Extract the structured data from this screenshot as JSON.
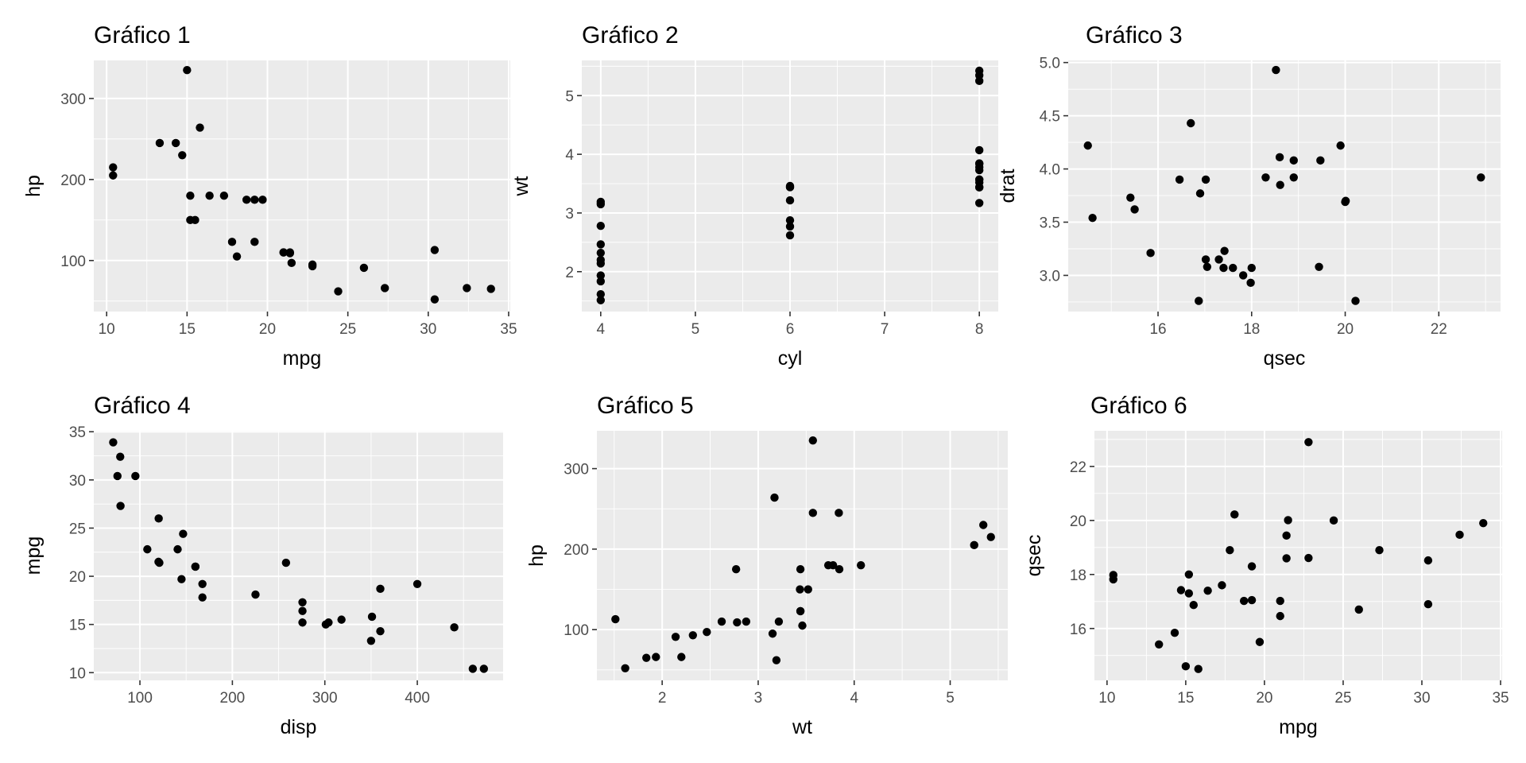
{
  "chart_data": [
    {
      "type": "scatter",
      "title": "Gráfico 1",
      "xlabel": "mpg",
      "ylabel": "hp",
      "xlim": [
        9.2,
        35.1
      ],
      "ylim": [
        37,
        347
      ],
      "x_ticks": [
        10,
        15,
        20,
        25,
        30,
        35
      ],
      "y_ticks": [
        100,
        200,
        300
      ],
      "grid": true,
      "points": [
        [
          21.0,
          110
        ],
        [
          21.0,
          110
        ],
        [
          22.8,
          93
        ],
        [
          21.4,
          110
        ],
        [
          18.7,
          175
        ],
        [
          18.1,
          105
        ],
        [
          14.3,
          245
        ],
        [
          24.4,
          62
        ],
        [
          22.8,
          95
        ],
        [
          19.2,
          123
        ],
        [
          17.8,
          123
        ],
        [
          16.4,
          180
        ],
        [
          17.3,
          180
        ],
        [
          15.2,
          180
        ],
        [
          10.4,
          205
        ],
        [
          10.4,
          215
        ],
        [
          14.7,
          230
        ],
        [
          32.4,
          66
        ],
        [
          30.4,
          52
        ],
        [
          33.9,
          65
        ],
        [
          21.5,
          97
        ],
        [
          15.5,
          150
        ],
        [
          15.2,
          150
        ],
        [
          13.3,
          245
        ],
        [
          19.2,
          175
        ],
        [
          27.3,
          66
        ],
        [
          26.0,
          91
        ],
        [
          30.4,
          113
        ],
        [
          15.8,
          264
        ],
        [
          19.7,
          175
        ],
        [
          15.0,
          335
        ],
        [
          21.4,
          109
        ]
      ]
    },
    {
      "type": "scatter",
      "title": "Gráfico 2",
      "xlabel": "cyl",
      "ylabel": "wt",
      "xlim": [
        3.8,
        8.2
      ],
      "ylim": [
        1.32,
        5.6
      ],
      "x_ticks": [
        4,
        5,
        6,
        7,
        8
      ],
      "y_ticks": [
        2,
        3,
        4,
        5
      ],
      "grid": true,
      "points": [
        [
          6,
          2.62
        ],
        [
          6,
          2.875
        ],
        [
          4,
          2.32
        ],
        [
          6,
          3.215
        ],
        [
          8,
          3.44
        ],
        [
          6,
          3.46
        ],
        [
          8,
          3.57
        ],
        [
          4,
          3.19
        ],
        [
          4,
          3.15
        ],
        [
          6,
          3.44
        ],
        [
          6,
          3.44
        ],
        [
          8,
          4.07
        ],
        [
          8,
          3.73
        ],
        [
          8,
          3.78
        ],
        [
          8,
          5.25
        ],
        [
          8,
          5.424
        ],
        [
          8,
          5.345
        ],
        [
          4,
          2.2
        ],
        [
          4,
          1.615
        ],
        [
          4,
          1.835
        ],
        [
          4,
          2.465
        ],
        [
          8,
          3.52
        ],
        [
          8,
          3.435
        ],
        [
          8,
          3.84
        ],
        [
          8,
          3.845
        ],
        [
          4,
          1.935
        ],
        [
          4,
          2.14
        ],
        [
          4,
          1.513
        ],
        [
          8,
          3.17
        ],
        [
          6,
          2.77
        ],
        [
          8,
          3.57
        ],
        [
          4,
          2.78
        ]
      ]
    },
    {
      "type": "scatter",
      "title": "Gráfico 3",
      "xlabel": "qsec",
      "ylabel": "drat",
      "xlim": [
        14.08,
        23.32
      ],
      "ylim": [
        2.66,
        5.02
      ],
      "x_ticks": [
        16,
        18,
        20,
        22
      ],
      "y_ticks": [
        "3.0",
        "3.5",
        "4.0",
        "4.5",
        "5.0"
      ],
      "grid": true,
      "points": [
        [
          16.46,
          3.9
        ],
        [
          17.02,
          3.9
        ],
        [
          18.61,
          3.85
        ],
        [
          19.44,
          3.08
        ],
        [
          17.02,
          3.15
        ],
        [
          20.22,
          2.76
        ],
        [
          15.84,
          3.21
        ],
        [
          20.0,
          3.69
        ],
        [
          22.9,
          3.92
        ],
        [
          18.3,
          3.92
        ],
        [
          18.9,
          3.92
        ],
        [
          17.4,
          3.07
        ],
        [
          17.6,
          3.07
        ],
        [
          18.0,
          3.07
        ],
        [
          17.98,
          2.93
        ],
        [
          17.82,
          3.0
        ],
        [
          17.42,
          3.23
        ],
        [
          19.47,
          4.08
        ],
        [
          18.52,
          4.93
        ],
        [
          19.9,
          4.22
        ],
        [
          20.01,
          3.7
        ],
        [
          16.87,
          2.76
        ],
        [
          17.3,
          3.15
        ],
        [
          15.41,
          3.73
        ],
        [
          17.05,
          3.08
        ],
        [
          18.9,
          4.08
        ],
        [
          16.7,
          4.43
        ],
        [
          16.9,
          3.77
        ],
        [
          14.5,
          4.22
        ],
        [
          15.5,
          3.62
        ],
        [
          14.6,
          3.54
        ],
        [
          18.6,
          4.11
        ]
      ]
    },
    {
      "type": "scatter",
      "title": "Gráfico 4",
      "xlabel": "disp",
      "ylabel": "mpg",
      "xlim": [
        50.1,
        492.8
      ],
      "ylim": [
        9.2,
        35.1
      ],
      "x_ticks": [
        100,
        200,
        300,
        400
      ],
      "y_ticks": [
        10,
        15,
        20,
        25,
        30,
        35
      ],
      "grid": true,
      "points": [
        [
          160,
          21.0
        ],
        [
          160,
          21.0
        ],
        [
          108,
          22.8
        ],
        [
          258,
          21.4
        ],
        [
          360,
          18.7
        ],
        [
          225,
          18.1
        ],
        [
          360,
          14.3
        ],
        [
          146.7,
          24.4
        ],
        [
          140.8,
          22.8
        ],
        [
          167.6,
          19.2
        ],
        [
          167.6,
          17.8
        ],
        [
          275.8,
          16.4
        ],
        [
          275.8,
          17.3
        ],
        [
          275.8,
          15.2
        ],
        [
          472,
          10.4
        ],
        [
          460,
          10.4
        ],
        [
          440,
          14.7
        ],
        [
          78.7,
          32.4
        ],
        [
          75.7,
          30.4
        ],
        [
          71.1,
          33.9
        ],
        [
          120.1,
          21.5
        ],
        [
          318,
          15.5
        ],
        [
          304,
          15.2
        ],
        [
          350,
          13.3
        ],
        [
          400,
          19.2
        ],
        [
          79,
          27.3
        ],
        [
          120.3,
          26.0
        ],
        [
          95.1,
          30.4
        ],
        [
          351,
          15.8
        ],
        [
          145,
          19.7
        ],
        [
          301,
          15.0
        ],
        [
          121,
          21.4
        ]
      ]
    },
    {
      "type": "scatter",
      "title": "Gráfico 5",
      "xlabel": "wt",
      "ylabel": "hp",
      "xlim": [
        1.32,
        5.6
      ],
      "ylim": [
        37,
        347
      ],
      "x_ticks": [
        2,
        3,
        4,
        5
      ],
      "y_ticks": [
        100,
        200,
        300
      ],
      "grid": true,
      "points": [
        [
          2.62,
          110
        ],
        [
          2.875,
          110
        ],
        [
          2.32,
          93
        ],
        [
          3.215,
          110
        ],
        [
          3.44,
          175
        ],
        [
          3.46,
          105
        ],
        [
          3.57,
          245
        ],
        [
          3.19,
          62
        ],
        [
          3.15,
          95
        ],
        [
          3.44,
          123
        ],
        [
          3.44,
          123
        ],
        [
          4.07,
          180
        ],
        [
          3.73,
          180
        ],
        [
          3.78,
          180
        ],
        [
          5.25,
          205
        ],
        [
          5.424,
          215
        ],
        [
          5.345,
          230
        ],
        [
          2.2,
          66
        ],
        [
          1.615,
          52
        ],
        [
          1.835,
          65
        ],
        [
          2.465,
          97
        ],
        [
          3.52,
          150
        ],
        [
          3.435,
          150
        ],
        [
          3.84,
          245
        ],
        [
          3.845,
          175
        ],
        [
          1.935,
          66
        ],
        [
          2.14,
          91
        ],
        [
          1.513,
          113
        ],
        [
          3.17,
          264
        ],
        [
          2.77,
          175
        ],
        [
          3.57,
          335
        ],
        [
          2.78,
          109
        ]
      ]
    },
    {
      "type": "scatter",
      "title": "Gráfico 6",
      "xlabel": "mpg",
      "ylabel": "qsec",
      "xlim": [
        9.2,
        35.1
      ],
      "ylim": [
        14.08,
        23.32
      ],
      "x_ticks": [
        10,
        15,
        20,
        25,
        30,
        35
      ],
      "y_ticks": [
        16,
        18,
        20,
        22
      ],
      "grid": true,
      "points": [
        [
          21.0,
          16.46
        ],
        [
          21.0,
          17.02
        ],
        [
          22.8,
          18.61
        ],
        [
          21.4,
          19.44
        ],
        [
          18.7,
          17.02
        ],
        [
          18.1,
          20.22
        ],
        [
          14.3,
          15.84
        ],
        [
          24.4,
          20.0
        ],
        [
          22.8,
          22.9
        ],
        [
          19.2,
          18.3
        ],
        [
          17.8,
          18.9
        ],
        [
          16.4,
          17.4
        ],
        [
          17.3,
          17.6
        ],
        [
          15.2,
          18.0
        ],
        [
          10.4,
          17.98
        ],
        [
          10.4,
          17.82
        ],
        [
          14.7,
          17.42
        ],
        [
          32.4,
          19.47
        ],
        [
          30.4,
          18.52
        ],
        [
          33.9,
          19.9
        ],
        [
          21.5,
          20.01
        ],
        [
          15.5,
          16.87
        ],
        [
          15.2,
          17.3
        ],
        [
          13.3,
          15.41
        ],
        [
          19.2,
          17.05
        ],
        [
          27.3,
          18.9
        ],
        [
          26.0,
          16.7
        ],
        [
          30.4,
          16.9
        ],
        [
          15.8,
          14.5
        ],
        [
          19.7,
          15.5
        ],
        [
          15.0,
          14.6
        ],
        [
          21.4,
          18.6
        ]
      ]
    }
  ]
}
